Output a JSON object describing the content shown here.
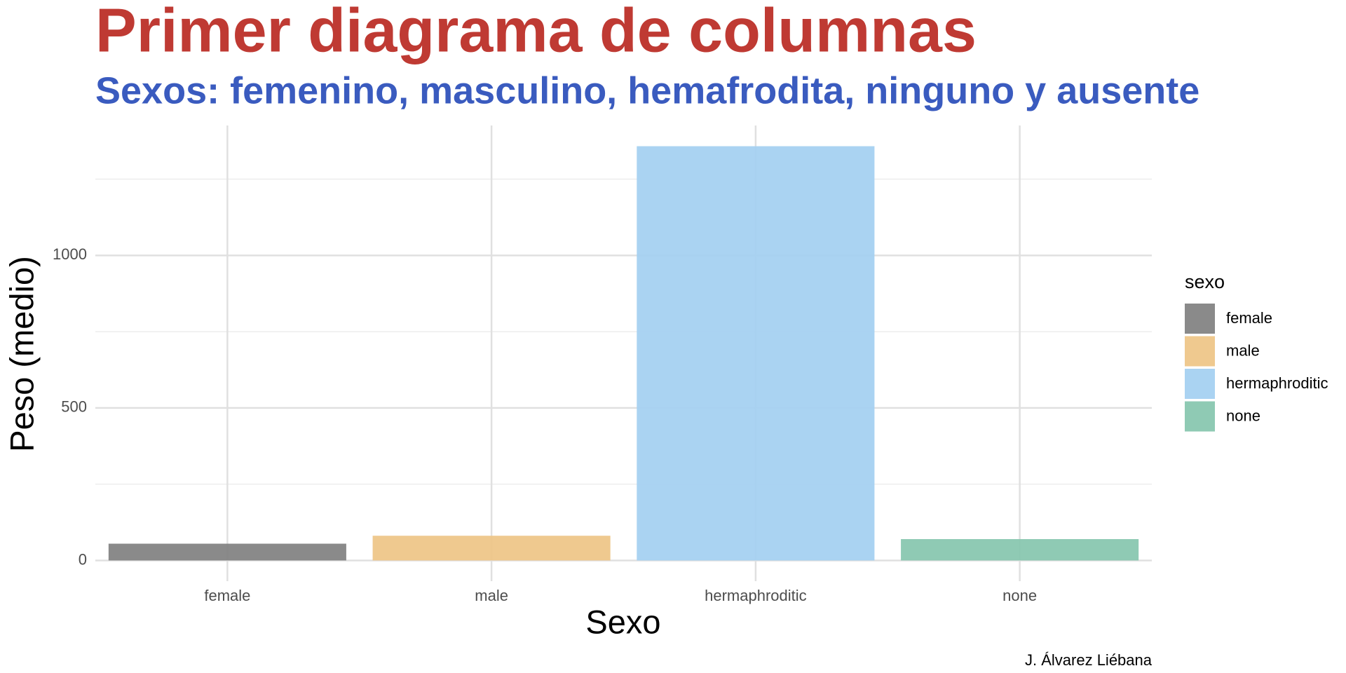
{
  "chart_data": {
    "type": "bar",
    "title": "Primer diagrama de columnas",
    "subtitle": "Sexos: femenino, masculino, hemafrodita, ninguno y ausente",
    "x_label": "Sexo",
    "y_label": "Peso (medio)",
    "caption": "J. Álvarez Liébana",
    "legend_title": "sexo",
    "legend": "right",
    "categories": [
      "female",
      "male",
      "hermaphroditic",
      "none"
    ],
    "values": [
      55,
      81,
      1358,
      70
    ],
    "colors": [
      "#808080",
      "#EEC485",
      "#A3CFF1",
      "#85C6AE"
    ],
    "ylim": [
      -67.9,
      1425.9
    ],
    "yticks": [
      0,
      500,
      1000
    ],
    "y_minor_ticks": [
      250,
      750,
      1250
    ],
    "grid": true
  }
}
